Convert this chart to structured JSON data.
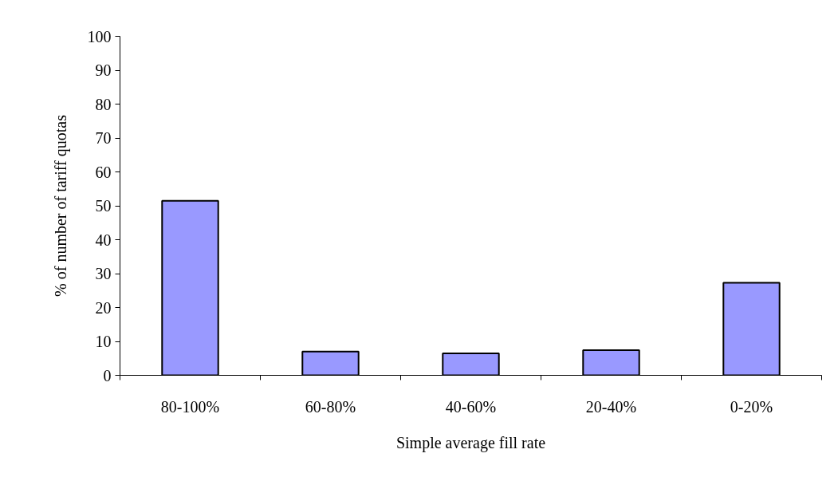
{
  "chart_data": {
    "type": "bar",
    "xlabel": "Simple average fill rate",
    "ylabel": "% of number of tariff quotas",
    "categories": [
      "80-100%",
      "60-80%",
      "40-60%",
      "20-40%",
      "0-20%"
    ],
    "values": [
      51.5,
      7,
      6.5,
      7.4,
      27.3
    ],
    "color": "#9999ff",
    "ylim": [
      0,
      100
    ],
    "yticks": [
      0,
      10,
      20,
      30,
      40,
      50,
      60,
      70,
      80,
      90,
      100
    ],
    "grid": false
  }
}
